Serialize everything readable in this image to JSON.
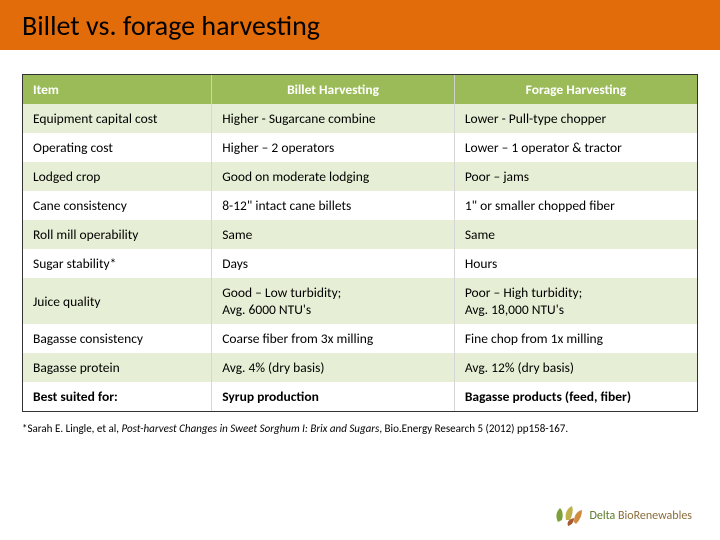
{
  "title": "Billet vs. forage harvesting",
  "colors": {
    "title_bar_bg": "#e36c0a",
    "header_bg": "#9bbb59",
    "header_text": "#ffffff",
    "row_odd_bg": "#e6efd5",
    "row_even_bg": "#ffffff",
    "text": "#000000"
  },
  "table": {
    "columns": [
      "Item",
      "Billet Harvesting",
      "Forage Harvesting"
    ],
    "col_widths_pct": [
      28,
      36,
      36
    ],
    "rows": [
      {
        "item": "Equipment capital cost",
        "billet": "Higher - Sugarcane combine",
        "forage": "Lower - Pull-type chopper"
      },
      {
        "item": "Operating cost",
        "billet": "Higher – 2 operators",
        "forage": "Lower – 1 operator & tractor"
      },
      {
        "item": "Lodged crop",
        "billet": "Good on moderate lodging",
        "forage": "Poor – jams"
      },
      {
        "item": "Cane consistency",
        "billet": "8-12\" intact cane billets",
        "forage": "1\" or smaller chopped fiber"
      },
      {
        "item": "Roll mill operability",
        "billet": "Same",
        "forage": "Same"
      },
      {
        "item": "Sugar stability*",
        "billet": "Days",
        "forage": "Hours"
      },
      {
        "item": "Juice quality",
        "billet": "Good – Low turbidity;\nAvg. 6000 NTU's",
        "forage": "Poor – High turbidity;\nAvg. 18,000 NTU's"
      },
      {
        "item": "Bagasse consistency",
        "billet": "Coarse fiber from 3x milling",
        "forage": "Fine chop from 1x milling"
      },
      {
        "item": "Bagasse protein",
        "billet": "Avg.  4% (dry basis)",
        "forage": "Avg. 12% (dry basis)"
      },
      {
        "item": "Best suited for:",
        "billet": "Syrup production",
        "forage": "Bagasse products (feed, fiber)",
        "bold": true
      }
    ]
  },
  "footnote": {
    "prefix": "*Sarah E. Lingle, et al, ",
    "italic": "Post-harvest Changes in Sweet Sorghum I: Brix and Sugars",
    "suffix": ", Bio.Energy Research 5 (2012) pp158-167."
  },
  "logo": {
    "brand_prefix": "Delta ",
    "brand_rest": "BioRenewables",
    "leaf_colors": [
      "#7da03a",
      "#c0b04a",
      "#d18b3e",
      "#a85a32"
    ]
  }
}
